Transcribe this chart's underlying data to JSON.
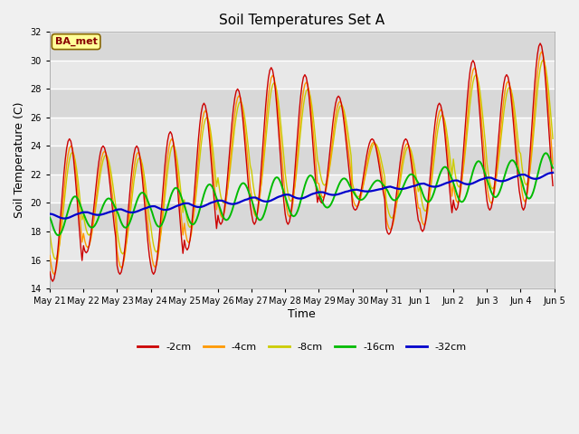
{
  "title": "Soil Temperatures Set A",
  "xlabel": "Time",
  "ylabel": "Soil Temperature (C)",
  "ylim": [
    14,
    32
  ],
  "yticks": [
    14,
    16,
    18,
    20,
    22,
    24,
    26,
    28,
    30,
    32
  ],
  "plot_bg_color": "#e8e8e8",
  "grid_color": "#ffffff",
  "series_colors": {
    "-2cm": "#cc0000",
    "-4cm": "#ff9900",
    "-8cm": "#cccc00",
    "-16cm": "#00bb00",
    "-32cm": "#0000cc"
  },
  "annotation_text": "BA_met",
  "annotation_bg": "#ffff99",
  "annotation_border": "#886600",
  "annotation_text_color": "#880000",
  "day_peaks_2": [
    24.5,
    24.0,
    24.0,
    25.0,
    27.0,
    28.0,
    29.5,
    29.0,
    27.5,
    24.5,
    24.5,
    27.0,
    30.0,
    29.0,
    31.2
  ],
  "day_valleys_2": [
    14.5,
    16.5,
    15.0,
    15.0,
    16.7,
    18.5,
    18.5,
    18.5,
    20.0,
    19.5,
    17.8,
    18.0,
    19.5,
    19.5,
    19.5
  ],
  "tick_labels": [
    "May 21",
    "May 22",
    "May 23",
    "May 24",
    "May 25",
    "May 26",
    "May 27",
    "May 28",
    "May 29",
    "May 30",
    "May 31",
    "Jun 1",
    "Jun 2",
    "Jun 3",
    "Jun 4",
    "Jun 5"
  ],
  "n_days": 15,
  "pts_per_day": 24
}
